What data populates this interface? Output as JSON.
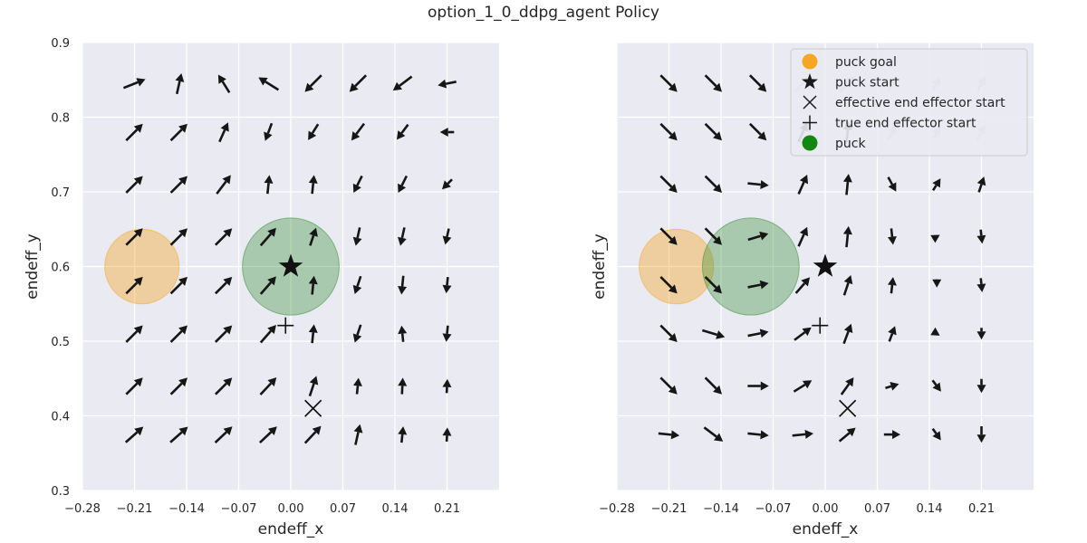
{
  "title": "option_1_0_ddpg_agent Policy",
  "chart_data": [
    {
      "type": "quiver",
      "xlabel": "endeff_x",
      "ylabel": "endeff_y",
      "xlim": [
        -0.28,
        0.28
      ],
      "ylim": [
        0.3,
        0.9
      ],
      "xticks": [
        "−0.28",
        "−0.21",
        "−0.14",
        "−0.07",
        "0.00",
        "0.07",
        "0.14",
        "0.21"
      ],
      "yticks": [
        "0.3",
        "0.4",
        "0.5",
        "0.6",
        "0.7",
        "0.8",
        "0.9"
      ],
      "show_ytick_labels": true,
      "grid": true,
      "puck_goal": {
        "x": -0.2,
        "y": 0.6,
        "color": "#f5a623"
      },
      "puck": {
        "x": 0.0,
        "y": 0.6,
        "color": "#2e8b2e"
      },
      "puck_start": {
        "x": 0.0,
        "y": 0.6
      },
      "effective_end_effector_start": {
        "x": 0.03,
        "y": 0.41
      },
      "true_end_effector_start": {
        "x": -0.007,
        "y": 0.521
      },
      "grid_x": [
        -0.21,
        -0.15,
        -0.09,
        -0.03,
        0.03,
        0.09,
        0.15,
        0.21
      ],
      "grid_y": [
        0.375,
        0.44,
        0.51,
        0.575,
        0.64,
        0.71,
        0.78,
        0.845
      ],
      "arrows_dx": [
        [
          0.9,
          0.9,
          0.85,
          0.85,
          0.75,
          0.2,
          0.1,
          0.05
        ],
        [
          0.8,
          0.8,
          0.8,
          0.75,
          0.3,
          0.1,
          0.05,
          0.05
        ],
        [
          0.8,
          0.8,
          0.8,
          0.7,
          0.1,
          -0.3,
          -0.1,
          -0.1
        ],
        [
          0.8,
          0.8,
          0.8,
          0.7,
          0.1,
          -0.3,
          -0.1,
          -0.1
        ],
        [
          0.8,
          0.8,
          0.8,
          0.7,
          0.3,
          -0.2,
          -0.2,
          -0.2
        ],
        [
          0.8,
          0.8,
          0.6,
          0.1,
          0.1,
          -0.4,
          -0.4,
          -0.6
        ],
        [
          0.8,
          0.8,
          0.4,
          -0.3,
          -0.5,
          -0.6,
          -0.6,
          -0.9
        ],
        [
          1.0,
          0.2,
          -0.5,
          -0.8,
          -0.7,
          -0.7,
          -0.8,
          -1.0
        ]
      ],
      "arrows_dy": [
        [
          0.8,
          0.8,
          0.8,
          0.8,
          0.8,
          0.9,
          1.0,
          1.0
        ],
        [
          0.8,
          0.8,
          0.8,
          0.8,
          0.9,
          1.0,
          1.0,
          1.0
        ],
        [
          0.8,
          0.8,
          0.8,
          0.8,
          1.0,
          -0.9,
          1.0,
          -1.0
        ],
        [
          0.8,
          0.8,
          0.8,
          0.8,
          1.0,
          -0.9,
          -1.0,
          -1.0
        ],
        [
          0.8,
          0.8,
          0.8,
          0.8,
          0.9,
          -0.9,
          -0.9,
          -0.9
        ],
        [
          0.8,
          0.8,
          0.8,
          1.0,
          1.0,
          -0.8,
          -0.8,
          -0.6
        ],
        [
          0.8,
          0.8,
          0.9,
          -0.8,
          -0.8,
          -0.8,
          -0.8,
          0.0
        ],
        [
          0.4,
          0.9,
          0.8,
          0.5,
          -0.7,
          -0.7,
          -0.6,
          -0.2
        ]
      ],
      "arrows_len": [
        [
          1,
          1,
          1,
          1,
          1,
          0.9,
          0.7,
          0.6
        ],
        [
          1,
          1,
          1,
          1,
          0.9,
          0.7,
          0.7,
          0.6
        ],
        [
          1,
          1,
          1,
          1,
          0.8,
          0.8,
          0.7,
          0.7
        ],
        [
          1,
          1,
          1,
          1,
          0.8,
          0.8,
          0.8,
          0.7
        ],
        [
          1,
          1,
          1,
          1,
          0.8,
          0.8,
          0.8,
          0.7
        ],
        [
          1,
          1,
          1,
          0.8,
          0.8,
          0.8,
          0.8,
          0.6
        ],
        [
          1,
          1,
          0.9,
          0.8,
          0.8,
          0.9,
          0.8,
          0.6
        ],
        [
          1,
          0.9,
          0.9,
          1,
          1,
          1,
          1,
          0.8
        ]
      ]
    },
    {
      "type": "quiver",
      "xlabel": "endeff_x",
      "ylabel": "endeff_y",
      "xlim": [
        -0.28,
        0.28
      ],
      "ylim": [
        0.3,
        0.9
      ],
      "xticks": [
        "−0.28",
        "−0.21",
        "−0.14",
        "−0.07",
        "0.00",
        "0.07",
        "0.14",
        "0.21"
      ],
      "yticks": [
        "0.3",
        "0.4",
        "0.5",
        "0.6",
        "0.7",
        "0.8",
        "0.9"
      ],
      "show_ytick_labels": false,
      "grid": true,
      "puck_goal": {
        "x": -0.2,
        "y": 0.6,
        "color": "#f5a623"
      },
      "puck": {
        "x": -0.1,
        "y": 0.6,
        "color": "#2e8b2e"
      },
      "puck_start": {
        "x": 0.0,
        "y": 0.6
      },
      "effective_end_effector_start": {
        "x": 0.03,
        "y": 0.41
      },
      "true_end_effector_start": {
        "x": -0.007,
        "y": 0.521
      },
      "grid_x": [
        -0.21,
        -0.15,
        -0.09,
        -0.03,
        0.03,
        0.09,
        0.15,
        0.21
      ],
      "grid_y": [
        0.375,
        0.44,
        0.51,
        0.575,
        0.64,
        0.71,
        0.78,
        0.845
      ],
      "arrows_dx": [
        [
          1.0,
          0.8,
          1.0,
          1.0,
          0.6,
          1.0,
          0.5,
          0.0
        ],
        [
          0.7,
          0.7,
          1.0,
          0.8,
          0.5,
          1.0,
          0.6,
          0.0
        ],
        [
          0.7,
          1.0,
          1.0,
          0.8,
          0.3,
          0.3,
          0.8,
          0.0
        ],
        [
          0.7,
          0.7,
          1.0,
          0.7,
          0.3,
          0.1,
          0.0,
          0.1
        ],
        [
          0.7,
          0.7,
          1.0,
          0.4,
          0.1,
          0.1,
          0.5,
          0.1
        ],
        [
          0.7,
          0.7,
          1.0,
          0.4,
          0.1,
          0.5,
          0.5,
          0.3
        ],
        [
          0.7,
          0.7,
          0.7,
          0.4,
          0.1,
          0.5,
          0.5,
          0.5
        ],
        [
          0.7,
          0.7,
          0.7,
          0.7,
          0.7,
          0.5,
          0.5,
          0.5
        ]
      ],
      "arrows_dy": [
        [
          -0.1,
          -0.6,
          -0.1,
          0.1,
          0.5,
          0.0,
          -0.7,
          -1.0
        ],
        [
          -0.7,
          -0.7,
          0.0,
          0.5,
          0.7,
          0.3,
          -0.8,
          -1.0
        ],
        [
          -0.7,
          -0.3,
          0.2,
          0.6,
          0.8,
          0.8,
          -0.5,
          -1.0
        ],
        [
          -0.7,
          -0.7,
          0.2,
          0.8,
          0.9,
          0.9,
          -1.0,
          -1.0
        ],
        [
          -0.7,
          -0.7,
          0.3,
          0.9,
          1.0,
          -0.9,
          0.3,
          -0.9
        ],
        [
          -0.7,
          -0.7,
          -0.1,
          0.9,
          1.0,
          -0.9,
          0.8,
          0.9
        ],
        [
          -0.7,
          -0.7,
          -0.7,
          0.9,
          1.0,
          0.9,
          0.9,
          0.9
        ],
        [
          -0.7,
          -0.7,
          -0.7,
          0.7,
          0.7,
          0.9,
          0.9,
          0.9
        ]
      ],
      "arrows_len": [
        [
          0.9,
          1,
          0.9,
          0.9,
          0.9,
          0.7,
          0.6,
          0.7
        ],
        [
          1,
          1,
          0.9,
          0.9,
          0.9,
          0.6,
          0.6,
          0.6
        ],
        [
          1,
          1,
          0.9,
          0.9,
          0.9,
          0.7,
          0.3,
          0.5
        ],
        [
          1,
          1,
          0.9,
          0.9,
          0.9,
          0.7,
          0.2,
          0.6
        ],
        [
          1,
          1,
          0.9,
          0.9,
          0.9,
          0.7,
          0.3,
          0.6
        ],
        [
          1,
          1,
          0.9,
          0.9,
          0.9,
          0.7,
          0.6,
          0.7
        ],
        [
          1,
          1,
          1,
          0.9,
          0.9,
          0.7,
          0.6,
          0.7
        ],
        [
          1,
          1,
          1,
          0.9,
          0.9,
          0.7,
          0.6,
          0.7
        ]
      ],
      "arrows_gray": [
        [
          0,
          0,
          0,
          0,
          0,
          0,
          0,
          0
        ],
        [
          0,
          0,
          0,
          0,
          0,
          0,
          0,
          0
        ],
        [
          0,
          0,
          0,
          0,
          0,
          0,
          0,
          0
        ],
        [
          0,
          0,
          0,
          0,
          0,
          0,
          0,
          0
        ],
        [
          0,
          0,
          0,
          0,
          0,
          0,
          0,
          0
        ],
        [
          0,
          0,
          0,
          0,
          0,
          0,
          0,
          0
        ],
        [
          0,
          0,
          0,
          0,
          0,
          1,
          1,
          1
        ],
        [
          0,
          0,
          0,
          1,
          1,
          1,
          1,
          1
        ]
      ],
      "legend": {
        "placement": "top-right",
        "entries": [
          {
            "label": "puck goal",
            "marker": "circle",
            "color": "#f5a623"
          },
          {
            "label": "puck start",
            "marker": "star",
            "color": "#1a1a1a"
          },
          {
            "label": "effective end effector start",
            "marker": "x",
            "color": "#1a1a1a"
          },
          {
            "label": "true end effector start",
            "marker": "plus",
            "color": "#1a1a1a"
          },
          {
            "label": "puck",
            "marker": "circle",
            "color": "#118811"
          }
        ]
      }
    }
  ]
}
